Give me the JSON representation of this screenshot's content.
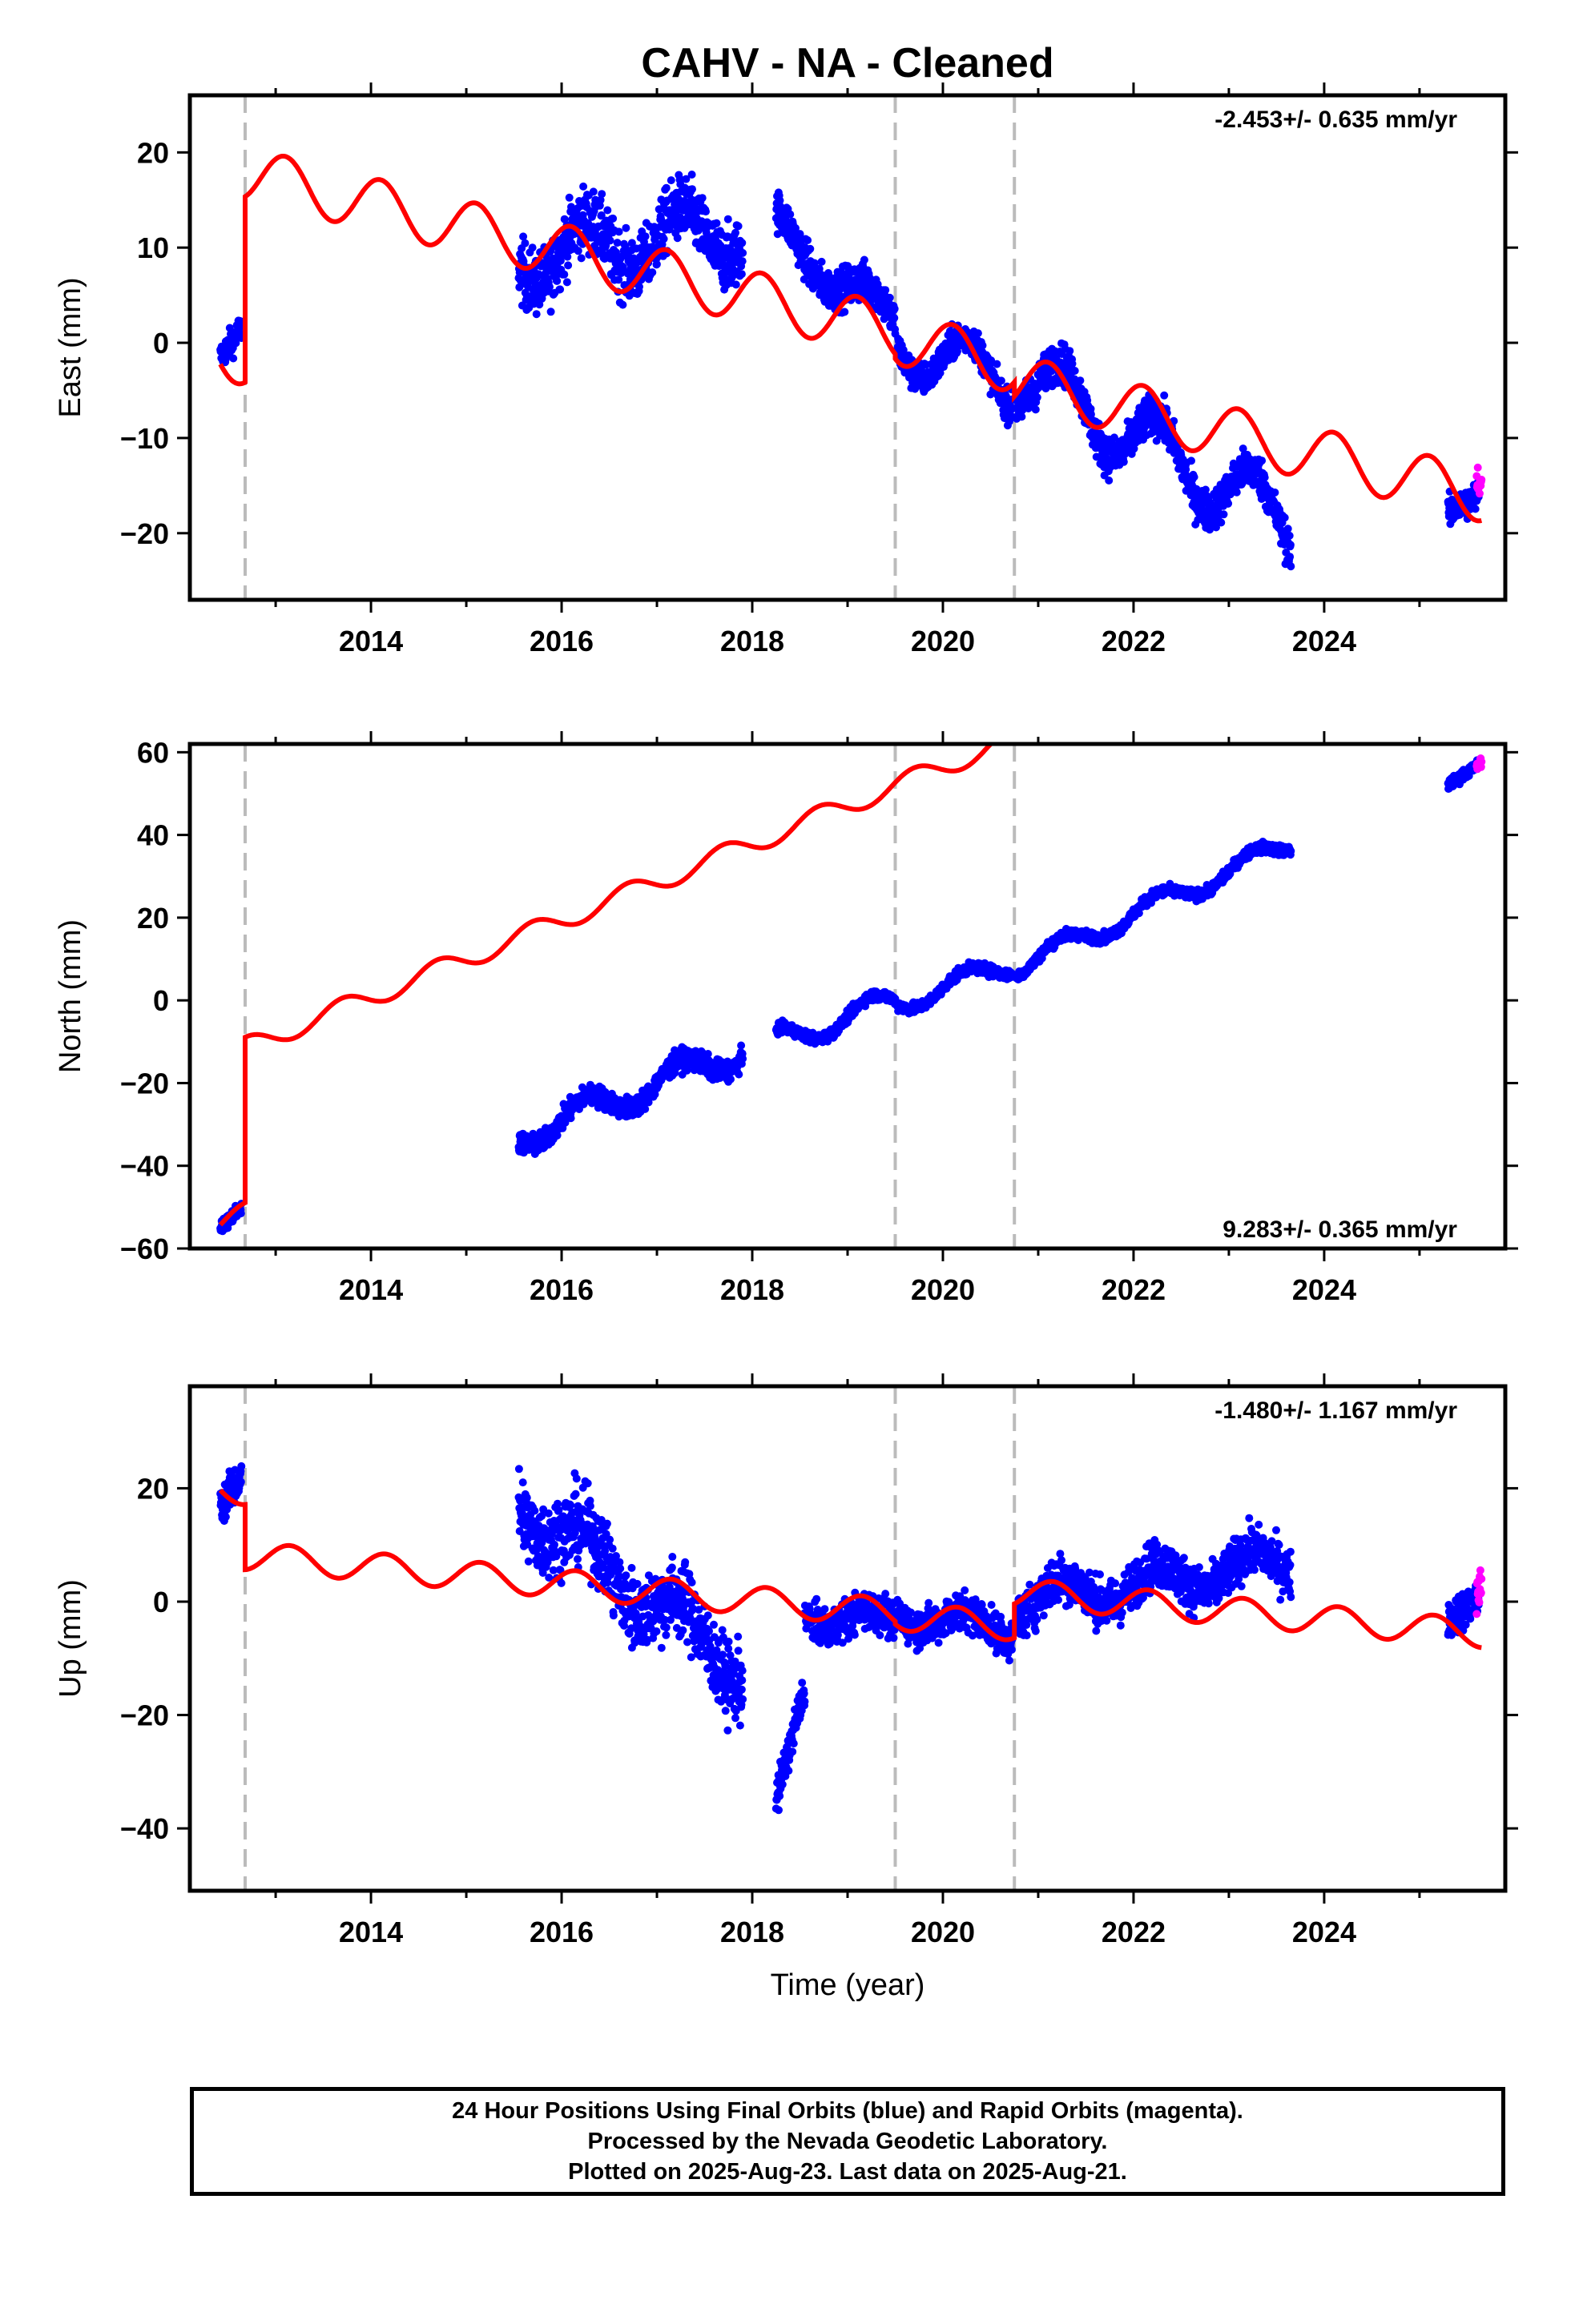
{
  "title": "CAHV  - NA - Cleaned",
  "footer": {
    "line1": "24 Hour Positions Using Final Orbits (blue) and Rapid Orbits (magenta).",
    "line2": "Processed by the Nevada Geodetic Laboratory.",
    "line3": "Plotted on 2025-Aug-23. Last data on 2025-Aug-21."
  },
  "colors": {
    "final": "#0000ff",
    "rapid": "#ff00ff",
    "model": "#ff0000",
    "breaks": "#bbbbbb"
  },
  "chart_data": [
    {
      "type": "scatter",
      "component": "East",
      "ylabel": "East (mm)",
      "xlabel": "",
      "xlim": [
        2012.1,
        2025.9
      ],
      "ylim": [
        -27,
        26
      ],
      "xticks": [
        2014,
        2016,
        2018,
        2020,
        2022,
        2024
      ],
      "yticks": [
        -20,
        -10,
        0,
        10,
        20
      ],
      "rate": "-2.453+/- 0.635 mm/yr",
      "rate_position": "top-right",
      "breaks": [
        2012.68,
        2019.5,
        2020.75
      ],
      "final_segments": [
        {
          "start": 2012.42,
          "end": 2012.64,
          "y0": -1.5,
          "y1": 1.5,
          "amp": 0,
          "noise": 1.8
        },
        {
          "start": 2015.55,
          "end": 2017.9,
          "y0": 9.0,
          "y1": 12.0,
          "amp": 3.0,
          "noise": 4.0
        },
        {
          "start": 2018.25,
          "end": 2019.5,
          "y0": 12.0,
          "y1": 2.0,
          "amp": 2.0,
          "noise": 2.5
        },
        {
          "start": 2019.52,
          "end": 2020.73,
          "y0": 0.0,
          "y1": -4.0,
          "amp": 3.0,
          "noise": 2.0
        },
        {
          "start": 2020.77,
          "end": 2023.65,
          "y0": -3.0,
          "y1": -19.0,
          "amp": 3.5,
          "noise": 2.5
        },
        {
          "start": 2025.3,
          "end": 2025.62,
          "y0": -18.0,
          "y1": -16.0,
          "amp": 0,
          "noise": 2.0
        }
      ],
      "rapid_segment": {
        "start": 2025.6,
        "end": 2025.65,
        "y0": -14.0,
        "y1": -15.0,
        "noise": 2.0
      },
      "model": {
        "rate": -2.453,
        "amp": 2.8,
        "phase": 0.15,
        "pieces": [
          {
            "start": 2012.42,
            "end": 2012.68,
            "offset": 0
          },
          {
            "start": 2012.68,
            "end": 2019.5,
            "offset": 18.5
          },
          {
            "start": 2019.5,
            "end": 2020.75,
            "offset": 18.0
          },
          {
            "start": 2020.75,
            "end": 2025.65,
            "offset": 16.5
          }
        ]
      }
    },
    {
      "type": "scatter",
      "component": "North",
      "ylabel": "North (mm)",
      "xlabel": "",
      "xlim": [
        2012.1,
        2025.9
      ],
      "ylim": [
        -60,
        62
      ],
      "xticks": [
        2014,
        2016,
        2018,
        2020,
        2022,
        2024
      ],
      "yticks": [
        -60,
        -40,
        -20,
        0,
        20,
        40,
        60
      ],
      "rate": "9.283+/- 0.365 mm/yr",
      "rate_position": "bottom-right",
      "breaks": [
        2012.68,
        2019.5,
        2020.75
      ],
      "final_segments": [
        {
          "start": 2012.42,
          "end": 2012.64,
          "y0": -55.0,
          "y1": -50.0,
          "amp": 0,
          "noise": 2.0
        },
        {
          "start": 2015.55,
          "end": 2017.9,
          "y0": -33.0,
          "y1": -12.0,
          "amp": 3.5,
          "noise": 3.0
        },
        {
          "start": 2018.25,
          "end": 2019.5,
          "y0": -10.0,
          "y1": 0.0,
          "amp": 3.0,
          "noise": 1.5
        },
        {
          "start": 2019.52,
          "end": 2020.73,
          "y0": -1.0,
          "y1": 9.0,
          "amp": 2.5,
          "noise": 1.5
        },
        {
          "start": 2020.77,
          "end": 2023.65,
          "y0": 8.0,
          "y1": 38.0,
          "amp": 2.5,
          "noise": 1.5
        },
        {
          "start": 2025.3,
          "end": 2025.62,
          "y0": 52.0,
          "y1": 57.0,
          "amp": 0,
          "noise": 1.5
        }
      ],
      "rapid_segment": {
        "start": 2025.6,
        "end": 2025.65,
        "y0": 56.0,
        "y1": 58.0,
        "noise": 1.5
      },
      "model": {
        "rate": 9.283,
        "amp": 2.5,
        "phase": 0.55,
        "pieces": [
          {
            "start": 2012.42,
            "end": 2012.68,
            "offset": 0
          },
          {
            "start": 2012.68,
            "end": 2019.5,
            "offset": -14.0
          },
          {
            "start": 2019.5,
            "end": 2020.75,
            "offset": -14.0
          },
          {
            "start": 2020.75,
            "end": 2025.65,
            "offset": -15.0
          }
        ]
      }
    },
    {
      "type": "scatter",
      "component": "Up",
      "ylabel": "Up (mm)",
      "xlabel": "Time (year)",
      "xlim": [
        2012.1,
        2025.9
      ],
      "ylim": [
        -51,
        38
      ],
      "xticks": [
        2014,
        2016,
        2018,
        2020,
        2022,
        2024
      ],
      "yticks": [
        -40,
        -20,
        0,
        20
      ],
      "rate": "-1.480+/- 1.167 mm/yr",
      "rate_position": "top-right",
      "breaks": [
        2012.68,
        2019.5,
        2020.75
      ],
      "final_segments": [
        {
          "start": 2012.42,
          "end": 2012.64,
          "y0": 17.0,
          "y1": 22.0,
          "amp": 0,
          "noise": 4.0
        },
        {
          "start": 2015.55,
          "end": 2017.9,
          "y0": 18.0,
          "y1": -12.0,
          "amp": 4.0,
          "noise": 8.0
        },
        {
          "start": 2018.25,
          "end": 2018.55,
          "y0": -35.0,
          "y1": -15.0,
          "amp": 0,
          "noise": 4.0
        },
        {
          "start": 2018.55,
          "end": 2019.5,
          "y0": -2.0,
          "y1": -4.0,
          "amp": 2.0,
          "noise": 4.0
        },
        {
          "start": 2019.52,
          "end": 2020.73,
          "y0": -2.0,
          "y1": -5.0,
          "amp": 2.0,
          "noise": 4.0
        },
        {
          "start": 2020.77,
          "end": 2023.65,
          "y0": 0.0,
          "y1": 7.0,
          "amp": 3.0,
          "noise": 5.0
        },
        {
          "start": 2025.3,
          "end": 2025.62,
          "y0": -3.0,
          "y1": 0.0,
          "amp": 0,
          "noise": 4.0
        }
      ],
      "rapid_segment": {
        "start": 2025.6,
        "end": 2025.65,
        "y0": 1.0,
        "y1": 3.0,
        "noise": 5.0
      },
      "model": {
        "rate": -1.48,
        "amp": 2.5,
        "phase": 0.1,
        "pieces": [
          {
            "start": 2012.42,
            "end": 2012.68,
            "offset": 20.0
          },
          {
            "start": 2012.68,
            "end": 2019.5,
            "offset": 8.5
          },
          {
            "start": 2019.5,
            "end": 2020.75,
            "offset": 8.0
          },
          {
            "start": 2020.75,
            "end": 2025.65,
            "offset": 14.0
          }
        ]
      }
    }
  ]
}
